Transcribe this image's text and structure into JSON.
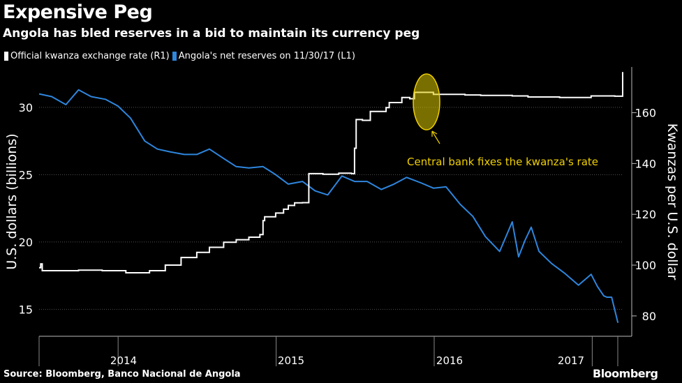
{
  "title": "Expensive Peg",
  "subtitle": "Angola has bled reserves in a bid to maintain its currency peg",
  "legend": {
    "official": "Official kwanza exchange rate (R1)",
    "reserves": "Angola's net reserves on 11/30/17 (L1)"
  },
  "source": "Source: Bloomberg, Banco Nacional de Angola",
  "brand": "Bloomberg",
  "annotation": "Central bank fixes the kwanza's rate",
  "colors": {
    "reserves": "#2e86de",
    "rate": "#ffffff",
    "annotation": "#f0d000",
    "grid": "#555555"
  },
  "chart_data": {
    "type": "line",
    "x_tick_labels": [
      "2014",
      "2015",
      "2016",
      "2017"
    ],
    "left_axis": {
      "label": "U.S. dollars (billions)",
      "ticks": [
        15,
        20,
        25,
        30
      ],
      "range": [
        13,
        33
      ]
    },
    "right_axis": {
      "label": "Kwanzas per U.S. dollar",
      "ticks": [
        80,
        100,
        120,
        140,
        160
      ],
      "range": [
        72,
        178
      ]
    },
    "series": [
      {
        "name": "Angola's net reserves on 11/30/17 (L1)",
        "axis": "left",
        "x": [
          2013.5,
          2013.58,
          2013.67,
          2013.75,
          2013.83,
          2013.92,
          2014.0,
          2014.08,
          2014.17,
          2014.25,
          2014.33,
          2014.42,
          2014.5,
          2014.58,
          2014.67,
          2014.75,
          2014.83,
          2014.92,
          2015.0,
          2015.08,
          2015.17,
          2015.25,
          2015.33,
          2015.42,
          2015.5,
          2015.58,
          2015.67,
          2015.75,
          2015.83,
          2015.92,
          2016.0,
          2016.08,
          2016.17,
          2016.25,
          2016.33,
          2016.42,
          2016.5,
          2016.54,
          2016.58,
          2016.62,
          2016.67,
          2016.75,
          2016.83,
          2016.92,
          2017.0,
          2017.04,
          2017.08,
          2017.1,
          2017.13,
          2017.17
        ],
        "y": [
          31.0,
          30.8,
          30.2,
          31.3,
          30.8,
          30.6,
          30.1,
          29.2,
          27.5,
          26.9,
          26.7,
          26.5,
          26.5,
          26.9,
          26.2,
          25.6,
          25.5,
          25.6,
          25.0,
          24.3,
          24.5,
          23.8,
          23.5,
          24.9,
          24.5,
          24.5,
          23.9,
          24.3,
          24.8,
          24.4,
          24.0,
          24.1,
          22.8,
          21.9,
          20.4,
          19.3,
          21.5,
          18.9,
          20.1,
          21.1,
          19.3,
          18.4,
          17.7,
          16.8,
          17.6,
          16.7,
          16.0,
          15.9,
          15.9,
          14.0
        ]
      },
      {
        "name": "Official kwanza exchange rate (R1)",
        "axis": "right",
        "x": [
          2013.5,
          2013.51,
          2013.52,
          2013.55,
          2013.6,
          2013.75,
          2013.9,
          2014.0,
          2014.05,
          2014.1,
          2014.2,
          2014.3,
          2014.4,
          2014.5,
          2014.58,
          2014.67,
          2014.75,
          2014.83,
          2014.9,
          2014.92,
          2014.93,
          2015.0,
          2015.05,
          2015.08,
          2015.12,
          2015.17,
          2015.2,
          2015.21,
          2015.3,
          2015.4,
          2015.48,
          2015.5,
          2015.51,
          2015.55,
          2015.6,
          2015.65,
          2015.7,
          2015.72,
          2015.8,
          2015.85,
          2015.88,
          2015.9,
          2016.0,
          2016.2,
          2016.3,
          2016.5,
          2016.6,
          2016.8,
          2017.0,
          2017.15,
          2017.2
        ],
        "y": [
          99.0,
          100.5,
          97.8,
          97.8,
          97.8,
          98.0,
          97.8,
          97.8,
          97.0,
          97.0,
          97.8,
          100.0,
          103.0,
          105.0,
          107.0,
          109.0,
          110.0,
          111.0,
          112.0,
          117.5,
          119.0,
          120.5,
          122.0,
          123.5,
          124.5,
          124.6,
          124.6,
          136.0,
          135.8,
          136.2,
          136.0,
          146.0,
          157.3,
          157.0,
          160.5,
          160.5,
          162.0,
          164.0,
          166.0,
          165.5,
          168.0,
          168.0,
          167.2,
          167.0,
          166.8,
          166.6,
          166.2,
          166.0,
          166.6,
          166.5,
          176.0
        ]
      }
    ],
    "annotations": [
      "Central bank fixes the kwanza's rate"
    ],
    "grid": true,
    "legend_position": "top-left"
  }
}
